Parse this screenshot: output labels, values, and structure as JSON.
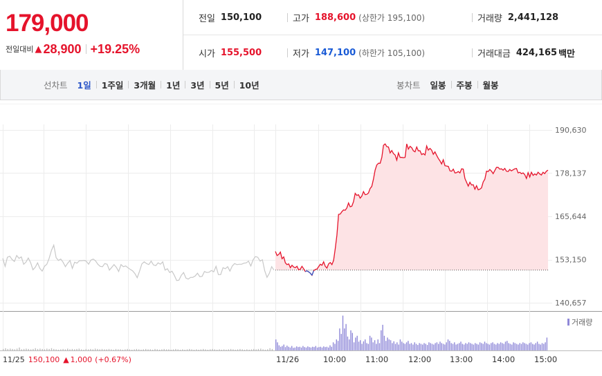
{
  "price": {
    "current": "179,000",
    "change_label": "전일대비",
    "change_arrow": "▲",
    "change_value": "28,900",
    "change_rate": "+19.25%"
  },
  "info": {
    "prev_close_label": "전일",
    "prev_close": "150,100",
    "high_label": "고가",
    "high": "188,600",
    "upper_limit_text": "(상한가 195,100)",
    "volume_label": "거래량",
    "volume": "2,441,128",
    "open_label": "시가",
    "open": "155,500",
    "low_label": "저가",
    "low": "147,100",
    "lower_limit_text": "(하한가 105,100)",
    "amount_label": "거래대금",
    "amount": "424,165",
    "amount_unit": "백만"
  },
  "tabs": {
    "line_chart_label": "선차트",
    "line_periods": [
      "1일",
      "1주일",
      "3개월",
      "1년",
      "3년",
      "5년",
      "10년"
    ],
    "active_period": "1일",
    "candle_chart_label": "봉차트",
    "candle_periods": [
      "일봉",
      "주봉",
      "월봉"
    ]
  },
  "chart_data": {
    "type": "line",
    "title": "",
    "ylim": [
      140657,
      190630
    ],
    "ytick_labels": [
      "190,630",
      "178,137",
      "165,644",
      "153,150",
      "140,657"
    ],
    "yticks": [
      190630,
      178137,
      165644,
      153150,
      140657
    ],
    "baseline": 150100,
    "x_labels": [
      "11/25",
      "11/26",
      "10:00",
      "11:00",
      "12:00",
      "13:00",
      "14:00",
      "15:00"
    ],
    "volume_legend": "거래량",
    "colors": {
      "today_line": "#e5132b",
      "today_fill": "#fde3e5",
      "prev_line": "#c8c8c8",
      "volume_today": "#8f88d8",
      "volume_prev": "#bdbdbd",
      "low_dip": "#2d57c8"
    },
    "prev_day_summary": {
      "date": "11/25",
      "close": "150,100",
      "arrow": "▲",
      "change": "1,000",
      "rate": "(+0.67%)"
    },
    "series": [
      {
        "values": [
          153500,
          151200,
          153800,
          154100,
          153200,
          152600,
          154300,
          153500,
          153900,
          151800,
          152400,
          153600,
          152300,
          150200,
          150900,
          152200,
          150600,
          149800,
          151200,
          151800,
          153500,
          155800,
          157300,
          153700,
          152900,
          153300,
          152400,
          151100,
          152100,
          152900,
          150600,
          152400,
          152100,
          152800,
          152800,
          152900,
          152700,
          151800,
          153000,
          153300,
          152800,
          151800,
          151200,
          151100,
          152000,
          151800,
          150100,
          150900,
          151700,
          150900,
          149700,
          151700,
          151100,
          151300,
          150800,
          150300,
          149900,
          149100,
          147900,
          149800,
          151900,
          152500,
          152000,
          151700,
          152700,
          151600,
          151400,
          152200,
          151800,
          152500,
          150100,
          150500,
          149400,
          149800,
          148600,
          147100,
          147200,
          148600,
          149400,
          147800,
          147500,
          148000,
          148000,
          148400,
          149200,
          148200,
          148300,
          149700,
          149400,
          149500,
          150000,
          149600,
          151200,
          148800,
          148800,
          150800,
          150500,
          151100,
          149800,
          151300,
          152000,
          151700,
          151800,
          151800,
          152100,
          152200,
          152700,
          151300,
          153100,
          154000,
          153800,
          152700,
          153100,
          149900,
          148000,
          149200,
          151100,
          150100
        ]
      },
      {
        "values": [
          155500,
          154300,
          154600,
          155300,
          153400,
          153900,
          152200,
          151700,
          151900,
          150800,
          151500,
          151000,
          150800,
          151200,
          150200,
          150400,
          151200,
          150500,
          149700,
          149900,
          149600,
          149200,
          148600,
          149900,
          150300,
          150400,
          151100,
          151800,
          151500,
          152500,
          151200,
          150700,
          151900,
          152300,
          151700,
          152900,
          156300,
          160200,
          166200,
          166300,
          167000,
          167500,
          167400,
          168100,
          169500,
          168400,
          168600,
          169900,
          172300,
          171700,
          171900,
          170900,
          171500,
          172800,
          171900,
          172000,
          172400,
          173700,
          174300,
          176400,
          179000,
          180500,
          181000,
          181000,
          182700,
          186200,
          186600,
          185800,
          185700,
          184000,
          184700,
          183800,
          183400,
          181900,
          184000,
          182700,
          182700,
          182600,
          182700,
          186600,
          185100,
          185900,
          185500,
          184600,
          184300,
          185700,
          184600,
          184600,
          183500,
          183800,
          183400,
          186000,
          184800,
          185300,
          184800,
          183600,
          184300,
          183300,
          182400,
          181700,
          180800,
          182000,
          180300,
          180200,
          180100,
          178800,
          178700,
          179300,
          178200,
          178300,
          178600,
          178200,
          179400,
          179300,
          176600,
          175500,
          174400,
          175500,
          174700,
          174800,
          173500,
          174500,
          173300,
          173500,
          173900,
          175600,
          176400,
          178700,
          178600,
          179200,
          178700,
          178000,
          178900,
          179800,
          179800,
          179300,
          179400,
          179000,
          179500,
          178700,
          178600,
          179200,
          178800,
          179100,
          179400,
          179500,
          178200,
          178400,
          178000,
          178200,
          177700,
          176600,
          178300,
          177000,
          178400,
          177500,
          177900,
          177600,
          178400,
          177900,
          177600,
          178400,
          178000,
          178700,
          179000
        ]
      }
    ],
    "volume": {
      "prev": [
        4,
        6,
        4,
        5,
        4,
        3,
        5,
        8,
        3,
        4,
        5,
        4,
        3,
        4,
        6,
        4,
        5,
        4,
        3,
        5,
        4,
        6,
        4,
        3,
        2,
        3,
        4,
        3,
        5,
        3,
        4,
        3,
        4,
        5,
        3,
        2,
        4,
        3,
        4,
        3,
        5,
        4,
        3,
        4,
        3,
        3,
        4,
        3,
        2,
        4,
        3,
        3,
        2,
        3,
        4,
        3,
        2,
        3,
        4,
        3,
        2,
        3,
        4,
        3,
        3,
        2,
        4,
        3,
        2,
        3,
        4,
        3,
        3,
        2,
        3,
        4,
        3,
        2,
        3,
        2,
        3,
        4,
        3,
        2,
        3,
        2,
        3,
        4,
        3,
        2,
        3,
        4,
        3,
        2,
        3,
        2,
        3,
        2,
        3,
        4,
        3,
        2,
        3,
        4,
        3,
        2,
        3,
        2,
        3,
        4,
        3,
        4,
        5,
        3,
        2,
        3,
        6,
        4
      ],
      "today": [
        30,
        22,
        14,
        10,
        12,
        16,
        9,
        13,
        10,
        8,
        12,
        7,
        8,
        11,
        9,
        10,
        8,
        12,
        9,
        8,
        11,
        9,
        8,
        10,
        9,
        12,
        8,
        9,
        10,
        8,
        11,
        9,
        10,
        8,
        14,
        10,
        22,
        18,
        30,
        26,
        60,
        45,
        95,
        60,
        72,
        38,
        30,
        55,
        48,
        22,
        35,
        40,
        24,
        28,
        18,
        25,
        30,
        20,
        18,
        40,
        35,
        22,
        28,
        18,
        30,
        20,
        55,
        70,
        40,
        26,
        35,
        30,
        28,
        20,
        25,
        18,
        22,
        16,
        30,
        24,
        20,
        18,
        22,
        26,
        18,
        20,
        16,
        22,
        18,
        15,
        20,
        18,
        16,
        20,
        18,
        15,
        22,
        20,
        18,
        16,
        20,
        22,
        18,
        24,
        20,
        18,
        16,
        22,
        30,
        26,
        20,
        18,
        22,
        16,
        18,
        20,
        24,
        18,
        16,
        20,
        18,
        22,
        20,
        18,
        16,
        20,
        18,
        16,
        22,
        20,
        18,
        24,
        20,
        18,
        16,
        20,
        22,
        18,
        16,
        20,
        18,
        22,
        20,
        18,
        24,
        26,
        20,
        18,
        16,
        22,
        20,
        18,
        16,
        20,
        18,
        22,
        20,
        18,
        16,
        20,
        22,
        18,
        16,
        20,
        24,
        18,
        16,
        20,
        18,
        22,
        35
      ]
    }
  }
}
